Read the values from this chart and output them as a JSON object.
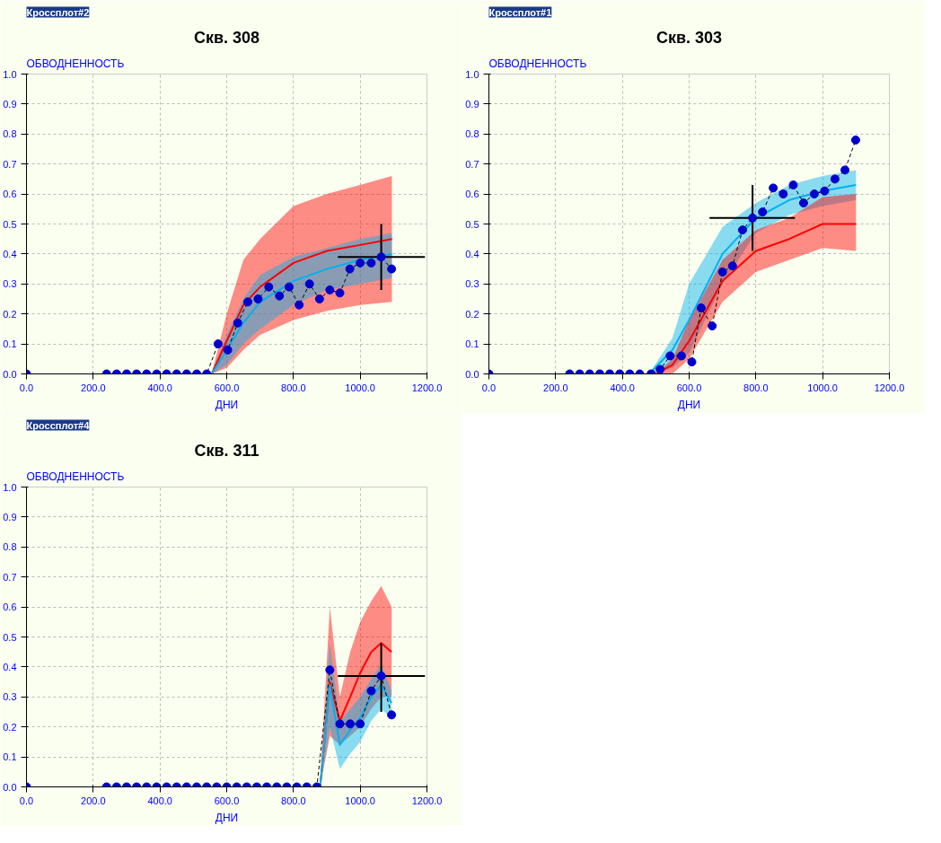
{
  "chart_data": [
    {
      "type": "line",
      "title": "Скв. 308",
      "annotations": [
        "Кроссплот#2"
      ],
      "xlabel": "ДНИ",
      "ylabel": "ОБВОДНЕННОСТЬ",
      "xlim": [
        0,
        1200
      ],
      "ylim": [
        0,
        1
      ],
      "xticks": [
        {
          "value": 0,
          "label": "0.0"
        },
        {
          "value": 200,
          "label": "200.0"
        },
        {
          "value": 400,
          "label": "400.0"
        },
        {
          "value": 600,
          "label": "600.0"
        },
        {
          "value": 800,
          "label": "800.0"
        },
        {
          "value": 1000,
          "label": "1000.0"
        },
        {
          "value": 1200,
          "label": "1200.0"
        }
      ],
      "yticks": [
        {
          "value": 0,
          "label": "0.0"
        },
        {
          "value": 0.1,
          "label": "0.1"
        },
        {
          "value": 0.2,
          "label": "0.2"
        },
        {
          "value": 0.3,
          "label": "0.3"
        },
        {
          "value": 0.4,
          "label": "0.4"
        },
        {
          "value": 0.5,
          "label": "0.5"
        },
        {
          "value": 0.6,
          "label": "0.6"
        },
        {
          "value": 0.7,
          "label": "0.7"
        },
        {
          "value": 0.8,
          "label": "0.8"
        },
        {
          "value": 0.9,
          "label": "0.9"
        },
        {
          "value": 1,
          "label": "1.0"
        }
      ],
      "grid": true,
      "series": [
        {
          "color": "#ff0000",
          "x": [
            555,
            600,
            650,
            700,
            800,
            900,
            1000,
            1095
          ],
          "values": [
            0,
            0.11,
            0.23,
            0.29,
            0.37,
            0.41,
            0.43,
            0.45
          ],
          "lower": [
            0,
            0.02,
            0.08,
            0.13,
            0.18,
            0.21,
            0.23,
            0.24
          ],
          "upper": [
            0,
            0.2,
            0.38,
            0.45,
            0.56,
            0.6,
            0.63,
            0.66
          ]
        },
        {
          "color": "#00b0f0",
          "x": [
            555,
            600,
            650,
            700,
            800,
            900,
            1000,
            1095
          ],
          "values": [
            0,
            0.08,
            0.17,
            0.24,
            0.31,
            0.35,
            0.38,
            0.4
          ],
          "lower": [
            0,
            0.03,
            0.1,
            0.15,
            0.23,
            0.28,
            0.3,
            0.32
          ],
          "upper": [
            0,
            0.13,
            0.25,
            0.33,
            0.39,
            0.42,
            0.45,
            0.47
          ]
        },
        {
          "color": "#0000cc",
          "marker": "circle",
          "line_style": "dashed",
          "x": [
            0,
            240,
            270,
            300,
            330,
            360,
            390,
            420,
            450,
            480,
            510,
            540,
            574,
            603,
            633,
            663,
            694,
            726,
            758,
            787,
            817,
            848,
            878,
            909,
            939,
            969,
            1000,
            1033,
            1063,
            1094
          ],
          "values": [
            0,
            0,
            0,
            0,
            0,
            0,
            0,
            0,
            0,
            0,
            0,
            0,
            0.1,
            0.08,
            0.17,
            0.24,
            0.25,
            0.29,
            0.26,
            0.29,
            0.23,
            0.3,
            0.25,
            0.28,
            0.27,
            0.35,
            0.37,
            0.37,
            0.39,
            0.35
          ],
          "errors": [
            null,
            null,
            null,
            null,
            null,
            null,
            null,
            null,
            null,
            null,
            null,
            null,
            null,
            null,
            null,
            null,
            null,
            null,
            null,
            null,
            null,
            null,
            null,
            null,
            null,
            null,
            null,
            null,
            [
              0.28,
              0.5
            ],
            null
          ],
          "xerrors": [
            null,
            null,
            null,
            null,
            null,
            null,
            null,
            null,
            null,
            null,
            null,
            null,
            null,
            null,
            null,
            null,
            null,
            null,
            null,
            null,
            null,
            null,
            null,
            null,
            null,
            null,
            null,
            null,
            [
              933,
              1194
            ],
            null
          ]
        }
      ]
    },
    {
      "type": "line",
      "title": "Скв. 303",
      "annotations": [
        "Кроссплот#1"
      ],
      "xlabel": "ДНИ",
      "ylabel": "ОБВОДНЕННОСТЬ",
      "xlim": [
        0,
        1200
      ],
      "ylim": [
        0,
        1
      ],
      "xticks": [
        {
          "value": 0,
          "label": "0.0"
        },
        {
          "value": 200,
          "label": "200.0"
        },
        {
          "value": 400,
          "label": "400.0"
        },
        {
          "value": 600,
          "label": "600.0"
        },
        {
          "value": 800,
          "label": "800.0"
        },
        {
          "value": 1000,
          "label": "1000.0"
        },
        {
          "value": 1200,
          "label": "1200.0"
        }
      ],
      "yticks": [
        {
          "value": 0,
          "label": "0.0"
        },
        {
          "value": 0.1,
          "label": "0.1"
        },
        {
          "value": 0.2,
          "label": "0.2"
        },
        {
          "value": 0.3,
          "label": "0.3"
        },
        {
          "value": 0.4,
          "label": "0.4"
        },
        {
          "value": 0.5,
          "label": "0.5"
        },
        {
          "value": 0.6,
          "label": "0.6"
        },
        {
          "value": 0.7,
          "label": "0.7"
        },
        {
          "value": 0.8,
          "label": "0.8"
        },
        {
          "value": 0.9,
          "label": "0.9"
        },
        {
          "value": 1,
          "label": "1.0"
        }
      ],
      "grid": true,
      "series": [
        {
          "color": "#00b0f0",
          "x": [
            480,
            550,
            600,
            700,
            800,
            900,
            1000,
            1100
          ],
          "values": [
            0,
            0.08,
            0.18,
            0.4,
            0.52,
            0.58,
            0.61,
            0.63
          ],
          "lower": [
            0,
            0.02,
            0.07,
            0.3,
            0.47,
            0.53,
            0.56,
            0.58
          ],
          "upper": [
            0,
            0.12,
            0.3,
            0.49,
            0.57,
            0.63,
            0.66,
            0.68
          ]
        },
        {
          "color": "#ff0000",
          "x": [
            500,
            550,
            600,
            700,
            800,
            900,
            1000,
            1100
          ],
          "values": [
            0,
            0.03,
            0.11,
            0.31,
            0.41,
            0.45,
            0.5,
            0.5
          ],
          "lower": [
            0,
            0,
            0.05,
            0.24,
            0.34,
            0.38,
            0.42,
            0.41
          ],
          "upper": [
            0,
            0.05,
            0.18,
            0.38,
            0.48,
            0.52,
            0.59,
            0.6
          ]
        },
        {
          "color": "#0000cc",
          "marker": "circle",
          "line_style": "dashed",
          "x": [
            0,
            242,
            272,
            302,
            332,
            362,
            392,
            422,
            452,
            486,
            513,
            543,
            577,
            608,
            636,
            669,
            700,
            730,
            760,
            790,
            820,
            852,
            882,
            912,
            943,
            975,
            1006,
            1037,
            1067,
            1099
          ],
          "values": [
            0,
            0,
            0,
            0,
            0,
            0,
            0,
            0,
            0,
            0,
            0.015,
            0.06,
            0.06,
            0.04,
            0.22,
            0.16,
            0.34,
            0.36,
            0.48,
            0.52,
            0.54,
            0.62,
            0.6,
            0.63,
            0.57,
            0.6,
            0.61,
            0.65,
            0.68,
            0.78
          ],
          "errors": [
            null,
            null,
            null,
            null,
            null,
            null,
            null,
            null,
            null,
            null,
            null,
            null,
            null,
            null,
            null,
            null,
            null,
            null,
            null,
            [
              0.41,
              0.63
            ],
            null,
            null,
            null,
            null,
            null,
            null,
            null,
            null,
            null,
            null
          ],
          "xerrors": [
            null,
            null,
            null,
            null,
            null,
            null,
            null,
            null,
            null,
            null,
            null,
            null,
            null,
            null,
            null,
            null,
            null,
            null,
            null,
            [
              661,
              917
            ],
            null,
            null,
            null,
            null,
            null,
            null,
            null,
            null,
            null,
            null
          ]
        }
      ]
    },
    {
      "type": "line",
      "title": "Скв. 311",
      "annotations": [
        "Кроссплот#4"
      ],
      "xlabel": "ДНИ",
      "ylabel": "ОБВОДНЕННОСТЬ",
      "xlim": [
        0,
        1200
      ],
      "ylim": [
        0,
        1
      ],
      "xticks": [
        {
          "value": 0,
          "label": "0.0"
        },
        {
          "value": 200,
          "label": "200.0"
        },
        {
          "value": 400,
          "label": "400.0"
        },
        {
          "value": 600,
          "label": "600.0"
        },
        {
          "value": 800,
          "label": "800.0"
        },
        {
          "value": 1000,
          "label": "1000.0"
        },
        {
          "value": 1200,
          "label": "1200.0"
        }
      ],
      "yticks": [
        {
          "value": 0,
          "label": "0.0"
        },
        {
          "value": 0.1,
          "label": "0.1"
        },
        {
          "value": 0.2,
          "label": "0.2"
        },
        {
          "value": 0.3,
          "label": "0.3"
        },
        {
          "value": 0.4,
          "label": "0.4"
        },
        {
          "value": 0.5,
          "label": "0.5"
        },
        {
          "value": 0.6,
          "label": "0.6"
        },
        {
          "value": 0.7,
          "label": "0.7"
        },
        {
          "value": 0.8,
          "label": "0.8"
        },
        {
          "value": 0.9,
          "label": "0.9"
        },
        {
          "value": 1,
          "label": "1.0"
        }
      ],
      "grid": true,
      "series": [
        {
          "color": "#ff0000",
          "x": [
            880,
            909,
            939,
            970,
            1000,
            1033,
            1063,
            1094
          ],
          "values": [
            0,
            0.35,
            0.22,
            0.3,
            0.38,
            0.45,
            0.48,
            0.45
          ],
          "lower": [
            0,
            0.17,
            0.14,
            0.17,
            0.2,
            0.26,
            0.3,
            0.3
          ],
          "upper": [
            0.02,
            0.6,
            0.3,
            0.45,
            0.55,
            0.62,
            0.67,
            0.6
          ]
        },
        {
          "color": "#00b0f0",
          "x": [
            880,
            909,
            939,
            970,
            1000,
            1033,
            1063,
            1094
          ],
          "values": [
            0,
            0.34,
            0.14,
            0.19,
            0.23,
            0.3,
            0.34,
            0.28
          ],
          "lower": [
            0,
            0.2,
            0.06,
            0.11,
            0.15,
            0.22,
            0.26,
            0.23
          ],
          "upper": [
            0,
            0.48,
            0.22,
            0.26,
            0.3,
            0.36,
            0.41,
            0.32
          ]
        },
        {
          "color": "#0000cc",
          "marker": "circle",
          "line_style": "dashed",
          "x": [
            0,
            240,
            270,
            300,
            330,
            360,
            390,
            420,
            450,
            480,
            510,
            540,
            570,
            600,
            630,
            660,
            690,
            720,
            750,
            780,
            810,
            840,
            870,
            909,
            939,
            970,
            1000,
            1033,
            1063,
            1094
          ],
          "values": [
            0,
            0,
            0,
            0,
            0,
            0,
            0,
            0,
            0,
            0,
            0,
            0,
            0,
            0,
            0,
            0,
            0,
            0,
            0,
            0,
            0,
            0,
            0,
            0.39,
            0.21,
            0.21,
            0.21,
            0.32,
            0.37,
            0.24
          ],
          "errors": [
            null,
            null,
            null,
            null,
            null,
            null,
            null,
            null,
            null,
            null,
            null,
            null,
            null,
            null,
            null,
            null,
            null,
            null,
            null,
            null,
            null,
            null,
            null,
            null,
            null,
            null,
            null,
            null,
            [
              0.25,
              0.48
            ],
            null
          ],
          "xerrors": [
            null,
            null,
            null,
            null,
            null,
            null,
            null,
            null,
            null,
            null,
            null,
            null,
            null,
            null,
            null,
            null,
            null,
            null,
            null,
            null,
            null,
            null,
            null,
            null,
            null,
            null,
            null,
            null,
            [
              933,
              1194
            ],
            null
          ]
        }
      ]
    }
  ]
}
